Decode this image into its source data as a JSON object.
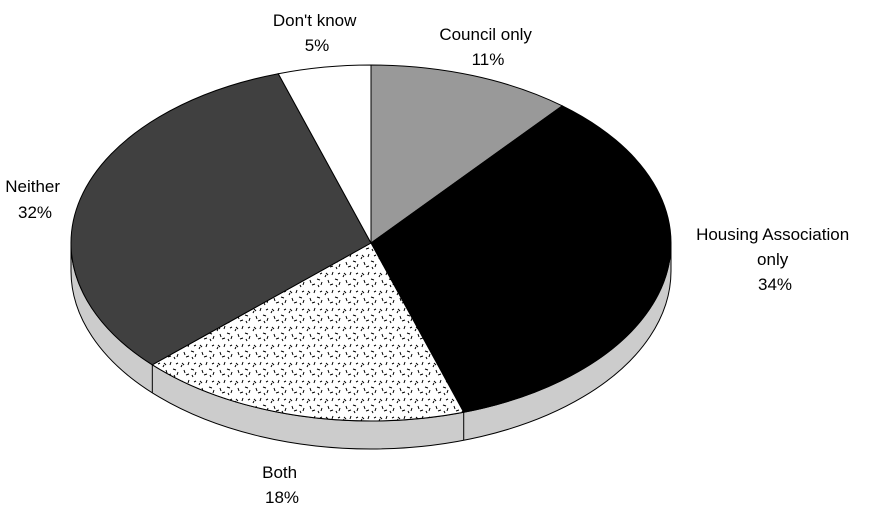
{
  "chart_data": {
    "type": "pie",
    "style": "3d",
    "slices": [
      {
        "label": "Council only",
        "value": 11,
        "value_label": "11%",
        "fill": "#999999",
        "pattern": "solid"
      },
      {
        "label": "Housing Association only",
        "value": 34,
        "value_label": "34%",
        "fill": "#000000",
        "pattern": "solid"
      },
      {
        "label": "Both",
        "value": 18,
        "value_label": "18%",
        "fill": "#ffffff",
        "pattern": "speckle"
      },
      {
        "label": "Neither",
        "value": 32,
        "value_label": "32%",
        "fill": "#404040",
        "pattern": "solid"
      },
      {
        "label": "Don't know",
        "value": 5,
        "value_label": "5%",
        "fill": "#ffffff",
        "pattern": "solid"
      }
    ],
    "edge_color": "#cccccc",
    "start": "12 o'clock",
    "direction": "clockwise"
  }
}
